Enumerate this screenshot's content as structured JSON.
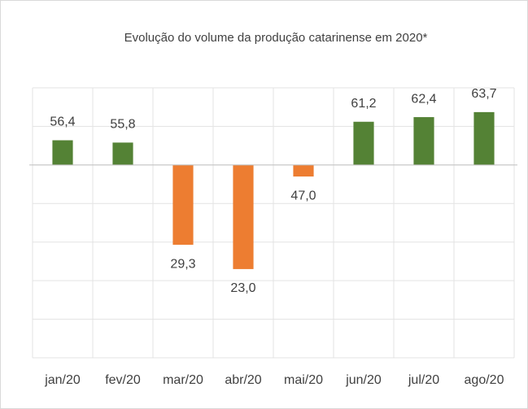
{
  "chart_data": {
    "type": "bar",
    "title": "Evolução do volume da produção catarinense em 2020*",
    "categories": [
      "jan/20",
      "fev/20",
      "mar/20",
      "abr/20",
      "mai/20",
      "jun/20",
      "jul/20",
      "ago/20"
    ],
    "values": [
      56.4,
      55.8,
      29.3,
      23.0,
      47.0,
      61.2,
      62.4,
      63.7
    ],
    "value_labels": [
      "56,4",
      "55,8",
      "29,3",
      "23,0",
      "47,0",
      "61,2",
      "62,4",
      "63,7"
    ],
    "colors": [
      "#548235",
      "#548235",
      "#ed7d31",
      "#ed7d31",
      "#ed7d31",
      "#548235",
      "#548235",
      "#548235"
    ],
    "baseline": 50,
    "ylim": [
      0,
      70
    ],
    "yticks": [
      0,
      10,
      20,
      30,
      40,
      50,
      60,
      70
    ],
    "grid": true
  }
}
